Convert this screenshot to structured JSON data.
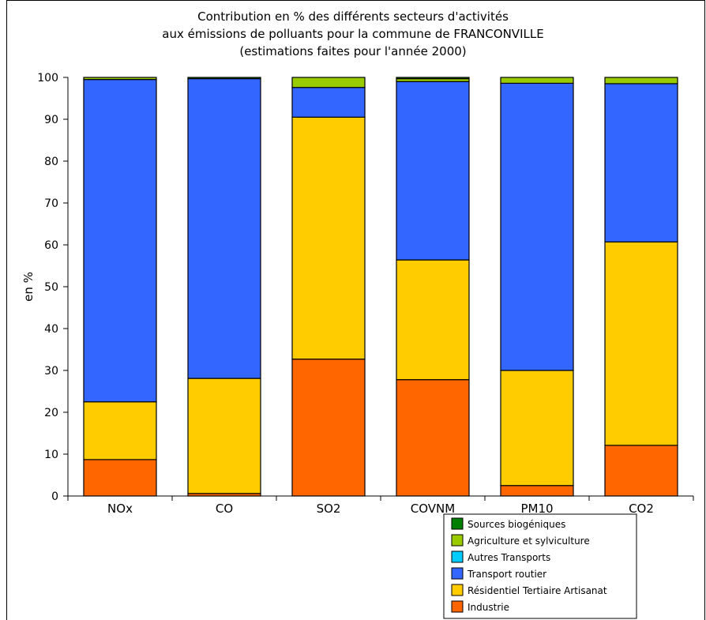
{
  "chart_data": {
    "type": "bar",
    "stacked": true,
    "title": "Contribution en % des différents secteurs d'activités\naux émissions de polluants pour la commune de FRANCONVILLE\n(estimations faites pour l'année 2000)",
    "ylabel": "en %",
    "xlabel": "",
    "ylim": [
      0,
      100
    ],
    "yticks": [
      0,
      10,
      20,
      30,
      40,
      50,
      60,
      70,
      80,
      90,
      100
    ],
    "categories": [
      "NOx",
      "CO",
      "SO2",
      "COVNM",
      "PM10",
      "CO2"
    ],
    "legend_position": "bottom-right",
    "series": [
      {
        "name": "Industrie",
        "color": "#ff6600",
        "values": [
          8.7,
          0.6,
          32.7,
          27.8,
          2.5,
          12.1
        ]
      },
      {
        "name": "Résidentiel Tertiaire Artisanat",
        "color": "#ffcc00",
        "values": [
          13.8,
          27.5,
          57.8,
          28.6,
          27.5,
          48.6
        ]
      },
      {
        "name": "Transport routier",
        "color": "#3366ff",
        "values": [
          77.0,
          71.6,
          7.1,
          42.6,
          68.6,
          37.8
        ]
      },
      {
        "name": "Autres Transports",
        "color": "#00ccff",
        "values": [
          0.0,
          0.0,
          0.0,
          0.0,
          0.0,
          0.0
        ]
      },
      {
        "name": "Agriculture et sylviculture",
        "color": "#99cc00",
        "values": [
          0.5,
          0.0,
          2.4,
          0.7,
          1.4,
          1.5
        ]
      },
      {
        "name": "Sources biogéniques",
        "color": "#008000",
        "values": [
          0.0,
          0.3,
          0.0,
          0.3,
          0.0,
          0.0
        ]
      }
    ],
    "grid": false
  }
}
